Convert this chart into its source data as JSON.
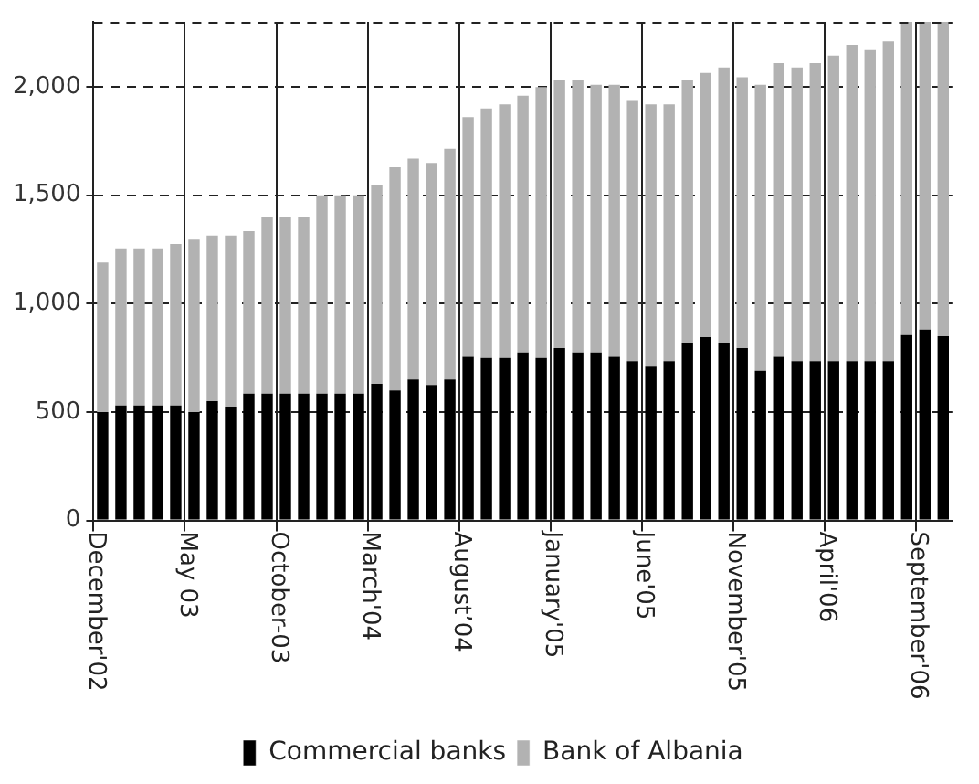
{
  "chart_data": {
    "type": "bar",
    "stacked": true,
    "categories": [
      "December'02",
      null,
      null,
      null,
      null,
      "May 03",
      null,
      null,
      null,
      null,
      "October-03",
      null,
      null,
      null,
      null,
      "March'04",
      null,
      null,
      null,
      null,
      "August’04",
      null,
      null,
      null,
      null,
      "January'05",
      null,
      null,
      null,
      null,
      "June'05",
      null,
      null,
      null,
      null,
      "November'05",
      null,
      null,
      null,
      null,
      "April'06",
      null,
      null,
      null,
      null,
      "September'06",
      null
    ],
    "series": [
      {
        "name": "Commercial banks",
        "color": "#000000",
        "values": [
          500,
          530,
          530,
          530,
          530,
          500,
          550,
          525,
          585,
          585,
          585,
          585,
          585,
          585,
          585,
          630,
          600,
          650,
          625,
          650,
          755,
          750,
          750,
          775,
          750,
          795,
          775,
          775,
          755,
          735,
          710,
          735,
          820,
          845,
          820,
          795,
          690,
          755,
          735,
          735,
          735,
          735,
          735,
          735,
          855,
          880,
          850
        ]
      },
      {
        "name": "Bank of Albania",
        "color": "#b2b2b2",
        "values": [
          690,
          725,
          725,
          725,
          745,
          795,
          765,
          790,
          750,
          815,
          815,
          815,
          915,
          915,
          915,
          915,
          1030,
          1020,
          1025,
          1065,
          1105,
          1150,
          1170,
          1185,
          1250,
          1235,
          1255,
          1235,
          1255,
          1205,
          1210,
          1185,
          1210,
          1220,
          1270,
          1250,
          1320,
          1355,
          1355,
          1375,
          1410,
          1460,
          1435,
          1475,
          1445,
          1420,
          1450
        ]
      }
    ],
    "ylim": [
      0,
      2300
    ],
    "yticks": [
      0,
      500,
      {
        "value": 1000,
        "label": "1,000"
      },
      {
        "value": 1500,
        "label": "1,500"
      },
      {
        "value": 2000,
        "label": "2,000"
      }
    ],
    "grid": true,
    "legend": "bottom"
  }
}
